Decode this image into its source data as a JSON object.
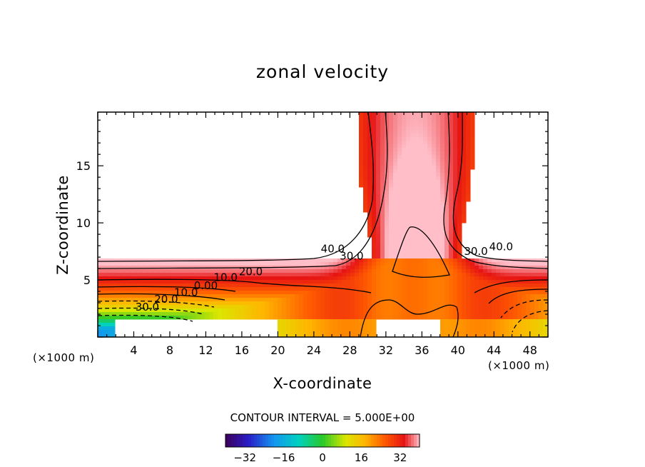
{
  "chart_data": {
    "type": "heatmap",
    "title": "zonal velocity",
    "xlabel": "X-coordinate",
    "ylabel": "Z-coordinate",
    "x_unit_left": "(×1000 m)",
    "x_unit_right": "(×1000 m)",
    "xlim": [
      0,
      50
    ],
    "ylim": [
      0,
      19.7
    ],
    "x_ticks": [
      4,
      8,
      12,
      16,
      20,
      24,
      28,
      32,
      36,
      40,
      44,
      48
    ],
    "y_ticks": [
      5,
      10,
      15
    ],
    "contour_interval_text": "CONTOUR INTERVAL = 5.000E+00",
    "colorbar": {
      "ticks": [
        -32,
        -16,
        0,
        16,
        32
      ],
      "range": [
        -40,
        40
      ]
    },
    "contour_labels": [
      {
        "text": "40.0",
        "x": 26.1,
        "y": 7.4
      },
      {
        "text": "30.0",
        "x": 28.2,
        "y": 6.8
      },
      {
        "text": "30.0",
        "x": 42.0,
        "y": 7.2
      },
      {
        "text": "40.0",
        "x": 44.8,
        "y": 7.6
      },
      {
        "text": "20.0",
        "x": 17.0,
        "y": 5.4
      },
      {
        "text": "10.0",
        "x": 14.2,
        "y": 4.9
      },
      {
        "text": "0.00",
        "x": 12.0,
        "y": 4.2
      },
      {
        "text": "10.0",
        "x": 9.8,
        "y": 3.6
      },
      {
        "text": "20.0",
        "x": 7.6,
        "y": 3.0
      },
      {
        "text": "30.0",
        "x": 5.5,
        "y": 2.3
      }
    ]
  }
}
